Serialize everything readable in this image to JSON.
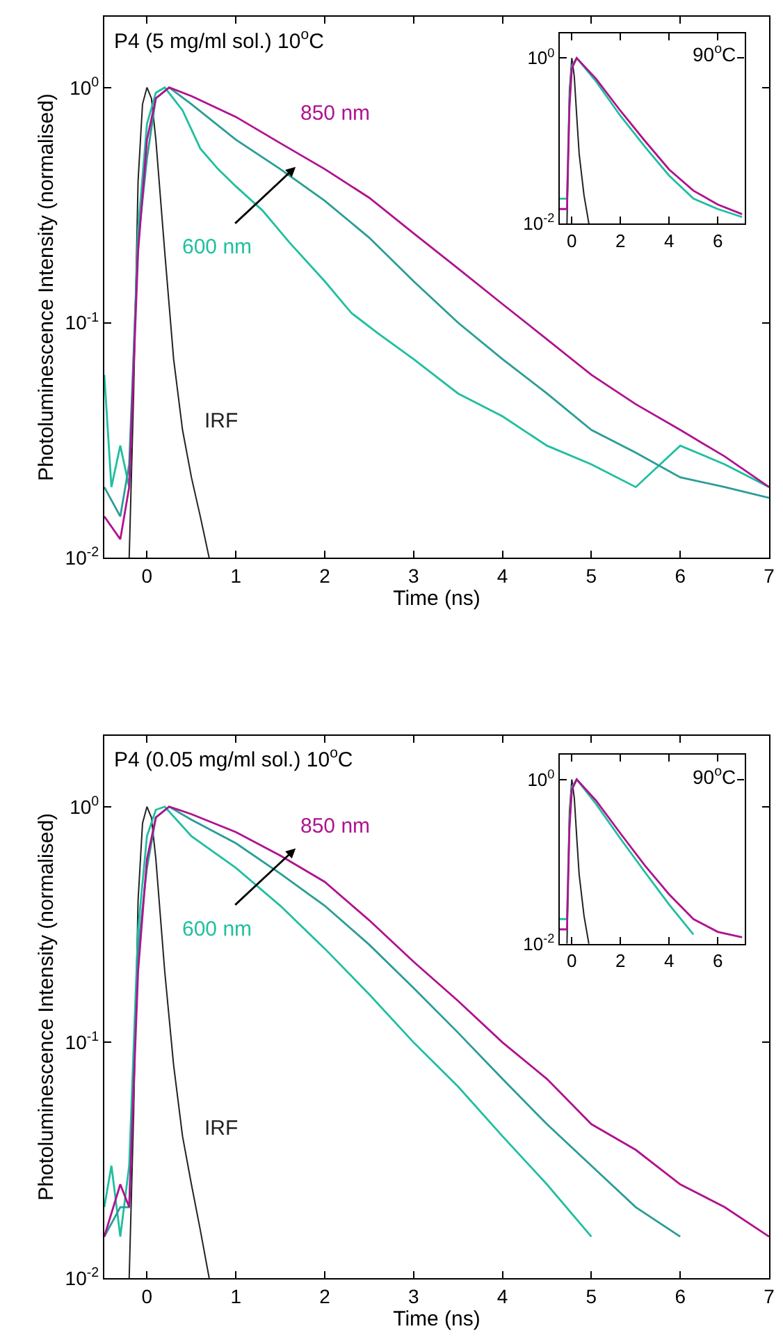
{
  "chart_data": [
    {
      "type": "line",
      "title": "P4 (5 mg/ml sol.) 10$^{o}$C",
      "xlabel": "Time (ns)",
      "ylabel": "Photoluminescence Intensity (normalised)",
      "log": "y",
      "legend": false,
      "xlim": [
        -0.48,
        7
      ],
      "xticks": [
        0,
        1,
        2,
        3,
        4,
        5,
        6,
        7
      ],
      "ylim": [
        0.01,
        2
      ],
      "yticks": [
        {
          "value": 0.01,
          "label": "10$^{-2}$"
        },
        {
          "value": 0.1,
          "label": "10$^{-1}$"
        },
        {
          "value": 1,
          "label": "10$^{0}$"
        }
      ],
      "series": [
        {
          "name": "IRF",
          "color": "#222222",
          "x": [
            -0.2,
            -0.15,
            -0.1,
            -0.05,
            0,
            0.05,
            0.1,
            0.2,
            0.3,
            0.4,
            0.5,
            0.6,
            0.7
          ],
          "values": [
            0.01,
            0.05,
            0.4,
            0.85,
            1.0,
            0.9,
            0.6,
            0.2,
            0.07,
            0.035,
            0.022,
            0.015,
            0.01
          ]
        },
        {
          "name": "600 nm",
          "color": "#1fbf9f",
          "x": [
            -0.48,
            -0.4,
            -0.3,
            -0.2,
            -0.1,
            0,
            0.1,
            0.2,
            0.4,
            0.6,
            0.8,
            1.0,
            1.3,
            1.6,
            2.0,
            2.3,
            2.6,
            3.0,
            3.5,
            4.0,
            4.5,
            5.0,
            5.5,
            6.0,
            6.5,
            7.0
          ],
          "values": [
            0.06,
            0.02,
            0.03,
            0.02,
            0.25,
            0.7,
            0.95,
            1.0,
            0.8,
            0.55,
            0.45,
            0.38,
            0.3,
            0.22,
            0.15,
            0.11,
            0.09,
            0.07,
            0.05,
            0.04,
            0.03,
            0.025,
            0.02,
            0.03,
            0.025,
            0.02
          ]
        },
        {
          "color": "#2a9d96",
          "x": [
            -0.48,
            -0.3,
            -0.2,
            -0.1,
            0,
            0.1,
            0.25,
            0.5,
            1.0,
            1.5,
            2.0,
            2.5,
            3.0,
            3.5,
            4.0,
            4.5,
            5.0,
            5.5,
            6.0,
            6.5,
            7.0
          ],
          "values": [
            0.02,
            0.015,
            0.025,
            0.22,
            0.5,
            0.9,
            1.0,
            0.85,
            0.6,
            0.45,
            0.33,
            0.23,
            0.15,
            0.1,
            0.07,
            0.05,
            0.035,
            0.028,
            0.022,
            0.02,
            0.018
          ]
        },
        {
          "name": "850 nm",
          "color": "#b0128f",
          "x": [
            -0.48,
            -0.3,
            -0.2,
            -0.1,
            0,
            0.1,
            0.25,
            0.5,
            1.0,
            1.5,
            2.0,
            2.5,
            3.0,
            3.5,
            4.0,
            4.5,
            5.0,
            5.5,
            6.0,
            6.5,
            7.0
          ],
          "values": [
            0.015,
            0.012,
            0.02,
            0.2,
            0.6,
            0.9,
            1.0,
            0.92,
            0.75,
            0.58,
            0.45,
            0.34,
            0.24,
            0.17,
            0.12,
            0.085,
            0.06,
            0.045,
            0.035,
            0.027,
            0.02
          ]
        }
      ]
    },
    {
      "type": "line",
      "title": "P4 (0.05 mg/ml sol.) 10$^{o}$C",
      "xlabel": "Time (ns)",
      "ylabel": "Photoluminescence Intensity (normalised)",
      "log": "y",
      "legend": false,
      "xlim": [
        -0.48,
        7
      ],
      "xticks": [
        0,
        1,
        2,
        3,
        4,
        5,
        6,
        7
      ],
      "ylim": [
        0.01,
        2
      ],
      "yticks": [
        {
          "value": 0.01,
          "label": "10$^{-2}$"
        },
        {
          "value": 0.1,
          "label": "10$^{-1}$"
        },
        {
          "value": 1,
          "label": "10$^{0}$"
        }
      ],
      "series": [
        {
          "name": "IRF",
          "color": "#222222",
          "x": [
            -0.2,
            -0.15,
            -0.1,
            -0.05,
            0,
            0.05,
            0.1,
            0.2,
            0.3,
            0.4,
            0.5,
            0.6,
            0.7
          ],
          "values": [
            0.01,
            0.05,
            0.4,
            0.85,
            1.0,
            0.9,
            0.6,
            0.2,
            0.08,
            0.04,
            0.025,
            0.016,
            0.01
          ]
        },
        {
          "name": "600 nm",
          "color": "#1fbf9f",
          "x": [
            -0.48,
            -0.4,
            -0.3,
            -0.2,
            -0.1,
            0,
            0.1,
            0.2,
            0.5,
            1.0,
            1.5,
            2.0,
            2.5,
            3.0,
            3.5,
            4.0,
            4.5,
            5.0
          ],
          "values": [
            0.02,
            0.03,
            0.015,
            0.03,
            0.3,
            0.75,
            0.97,
            1.0,
            0.75,
            0.55,
            0.38,
            0.25,
            0.16,
            0.1,
            0.065,
            0.04,
            0.025,
            0.015
          ]
        },
        {
          "color": "#2a9d96",
          "x": [
            -0.48,
            -0.3,
            -0.2,
            -0.1,
            0,
            0.1,
            0.25,
            0.5,
            1.0,
            1.5,
            2.0,
            2.5,
            3.0,
            3.5,
            4.0,
            4.5,
            5.0,
            5.5,
            6.0
          ],
          "values": [
            0.015,
            0.02,
            0.02,
            0.25,
            0.55,
            0.9,
            1.0,
            0.88,
            0.7,
            0.52,
            0.38,
            0.26,
            0.17,
            0.11,
            0.07,
            0.045,
            0.03,
            0.02,
            0.015
          ]
        },
        {
          "name": "850 nm",
          "color": "#b0128f",
          "x": [
            -0.48,
            -0.3,
            -0.2,
            -0.1,
            0,
            0.1,
            0.25,
            0.5,
            1.0,
            1.5,
            2.0,
            2.5,
            3.0,
            3.5,
            4.0,
            4.5,
            5.0,
            5.5,
            6.0,
            6.5,
            7.0
          ],
          "values": [
            0.015,
            0.025,
            0.02,
            0.2,
            0.6,
            0.9,
            1.0,
            0.93,
            0.78,
            0.62,
            0.48,
            0.33,
            0.22,
            0.15,
            0.1,
            0.07,
            0.045,
            0.035,
            0.025,
            0.02,
            0.015
          ]
        }
      ]
    },
    {
      "type": "line",
      "title": "90$^{o}$C",
      "log": "y",
      "legend": false,
      "xlim": [
        -0.5,
        7.1
      ],
      "xticks": [
        0,
        2,
        4,
        6
      ],
      "ylim": [
        0.01,
        2
      ],
      "yticks": [
        {
          "value": 0.01,
          "label": "10$^{-2}$"
        },
        {
          "value": 1,
          "label": "10$^{0}$"
        }
      ],
      "series": [
        {
          "color": "#222222",
          "x": [
            -0.2,
            -0.1,
            0,
            0.1,
            0.2,
            0.3,
            0.5,
            0.7
          ],
          "values": [
            0.01,
            0.4,
            1.0,
            0.6,
            0.2,
            0.07,
            0.022,
            0.01
          ]
        },
        {
          "color": "#1fbf9f",
          "x": [
            -0.5,
            -0.2,
            -0.1,
            0,
            0.2,
            1,
            2,
            3,
            4,
            5,
            6,
            7
          ],
          "values": [
            0.02,
            0.02,
            0.3,
            0.8,
            1.0,
            0.52,
            0.2,
            0.085,
            0.038,
            0.02,
            0.015,
            0.012
          ]
        },
        {
          "color": "#b0128f",
          "x": [
            -0.5,
            -0.2,
            -0.1,
            0,
            0.2,
            1,
            2,
            3,
            4,
            5,
            6,
            7
          ],
          "values": [
            0.015,
            0.015,
            0.25,
            0.75,
            1.0,
            0.56,
            0.23,
            0.1,
            0.045,
            0.025,
            0.017,
            0.013
          ]
        }
      ]
    },
    {
      "type": "line",
      "title": "90$^{o}$C",
      "log": "y",
      "legend": false,
      "xlim": [
        -0.5,
        7.1
      ],
      "xticks": [
        0,
        2,
        4,
        6
      ],
      "ylim": [
        0.01,
        2
      ],
      "yticks": [
        {
          "value": 0.01,
          "label": "10$^{-2}$"
        },
        {
          "value": 1,
          "label": "10$^{0}$"
        }
      ],
      "series": [
        {
          "color": "#222222",
          "x": [
            -0.2,
            -0.1,
            0,
            0.1,
            0.2,
            0.3,
            0.5,
            0.7
          ],
          "values": [
            0.01,
            0.4,
            1.0,
            0.6,
            0.2,
            0.07,
            0.022,
            0.01
          ]
        },
        {
          "color": "#1fbf9f",
          "x": [
            -0.5,
            -0.2,
            -0.1,
            0,
            0.2,
            1,
            2,
            3,
            4,
            5
          ],
          "values": [
            0.02,
            0.02,
            0.3,
            0.8,
            1.0,
            0.5,
            0.19,
            0.075,
            0.03,
            0.013
          ]
        },
        {
          "color": "#b0128f",
          "x": [
            -0.5,
            -0.2,
            -0.1,
            0,
            0.2,
            1,
            2,
            3,
            4,
            5,
            6,
            7
          ],
          "values": [
            0.015,
            0.015,
            0.25,
            0.75,
            1.0,
            0.55,
            0.22,
            0.09,
            0.04,
            0.02,
            0.014,
            0.012
          ]
        }
      ]
    }
  ]
}
